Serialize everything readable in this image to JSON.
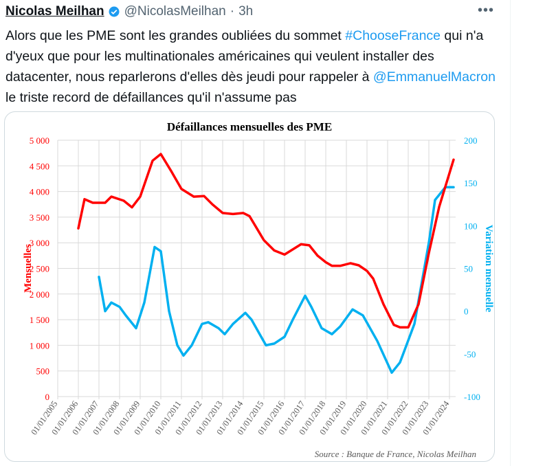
{
  "tweet": {
    "name": "Nicolas Meilhan",
    "handle": "@NicolasMeilhan",
    "separator": "·",
    "time": "3h",
    "more": "•••",
    "text_parts": [
      {
        "t": "Alors que les PME sont les grandes oubliées du sommet ",
        "link": false
      },
      {
        "t": "#ChooseFrance",
        "link": true
      },
      {
        "t": " qui n'a d'yeux que pour les multinationales américaines qui veulent installer des datacenter, nous reparlerons d'elles dès jeudi pour rappeler à ",
        "link": false
      },
      {
        "t": "@EmmanuelMacron",
        "link": true
      },
      {
        "t": " le triste record de défaillances qu'il n'assume pas",
        "link": false
      }
    ],
    "link_color": "#1d9bf0"
  },
  "chart_data": {
    "type": "line",
    "title": "Défaillances mensuelles des PME",
    "ylabel": "Mensuelles",
    "y2label": "Variation mensuelle",
    "source": "Source : Banque de France, Nicolas Meilhan",
    "ylim": [
      0,
      5000
    ],
    "y2lim": [
      -100,
      200
    ],
    "xlim": [
      2005,
      2024.3
    ],
    "yticks": [
      "0",
      "500",
      "1 000",
      "1 500",
      "2 000",
      "2 500",
      "3 000",
      "3 500",
      "4 000",
      "4 500",
      "5 000"
    ],
    "y2ticks": [
      "-100",
      "-50",
      "0",
      "50",
      "100",
      "150",
      "200"
    ],
    "xticks": [
      "01/01/2005",
      "01/01/2006",
      "01/01/2007",
      "01/01/2008",
      "01/01/2009",
      "01/01/2010",
      "01/01/2011",
      "01/01/2012",
      "01/01/2013",
      "01/01/2014",
      "01/01/2015",
      "01/01/2016",
      "01/01/2017",
      "01/01/2018",
      "01/01/2019",
      "01/01/2020",
      "01/01/2021",
      "01/01/2022",
      "01/01/2023",
      "01/01/2024"
    ],
    "grid": true,
    "series": [
      {
        "name": "Mensuelles",
        "axis": "left",
        "color": "#ff0000",
        "x": [
          2006.0,
          2006.3,
          2006.7,
          2007.3,
          2007.6,
          2008.2,
          2008.6,
          2009.0,
          2009.6,
          2010.0,
          2010.5,
          2011.0,
          2011.6,
          2012.1,
          2012.5,
          2013.0,
          2013.5,
          2014.0,
          2014.3,
          2015.0,
          2015.5,
          2016.0,
          2016.8,
          2017.2,
          2017.6,
          2018.0,
          2018.3,
          2018.7,
          2019.2,
          2019.6,
          2020.0,
          2020.3,
          2020.8,
          2021.3,
          2021.6,
          2022.0,
          2022.5,
          2023.0,
          2023.5,
          2024.2
        ],
        "y": [
          3280,
          3850,
          3780,
          3780,
          3900,
          3820,
          3690,
          3900,
          4600,
          4730,
          4400,
          4050,
          3900,
          3910,
          3750,
          3580,
          3560,
          3580,
          3520,
          3050,
          2850,
          2770,
          2970,
          2950,
          2750,
          2620,
          2550,
          2550,
          2600,
          2560,
          2450,
          2300,
          1800,
          1400,
          1350,
          1350,
          1800,
          2800,
          3700,
          4620
        ]
      },
      {
        "name": "Variation mensuelle",
        "axis": "right",
        "color": "#00b0f0",
        "x": [
          2007.0,
          2007.3,
          2007.6,
          2008.0,
          2008.3,
          2008.8,
          2009.2,
          2009.7,
          2010.0,
          2010.4,
          2010.8,
          2011.1,
          2011.5,
          2012.0,
          2012.3,
          2012.8,
          2013.1,
          2013.5,
          2014.1,
          2014.4,
          2015.1,
          2015.5,
          2016.0,
          2016.4,
          2017.0,
          2017.3,
          2017.8,
          2018.3,
          2018.7,
          2019.3,
          2019.8,
          2020.5,
          2021.2,
          2021.6,
          2022.3,
          2023.0,
          2023.3,
          2023.8,
          2024.2
        ],
        "y": [
          40,
          0,
          10,
          5,
          -5,
          -20,
          10,
          75,
          70,
          0,
          -40,
          -52,
          -40,
          -15,
          -13,
          -20,
          -27,
          -15,
          -2,
          -10,
          -40,
          -38,
          -30,
          -10,
          18,
          5,
          -20,
          -27,
          -18,
          2,
          -5,
          -35,
          -72,
          -60,
          -15,
          80,
          130,
          145,
          145
        ]
      }
    ]
  }
}
